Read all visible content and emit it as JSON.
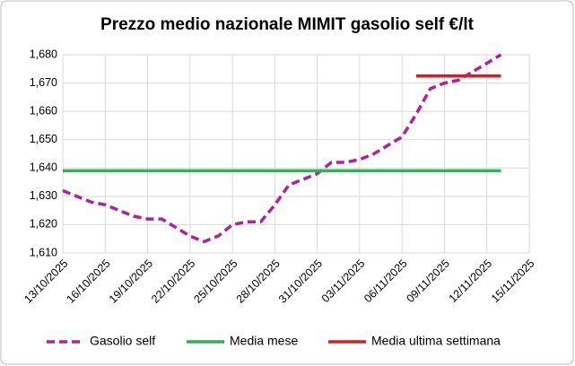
{
  "chart_data": {
    "type": "line",
    "title": "Prezzo medio nazionale MIMIT gasolio self €/lt",
    "xlim": [
      "13/10/2025",
      "15/11/2025"
    ],
    "xticks": [
      "13/10/2025",
      "16/10/2025",
      "19/10/2025",
      "22/10/2025",
      "25/10/2025",
      "28/10/2025",
      "31/10/2025",
      "03/11/2025",
      "06/11/2025",
      "09/11/2025",
      "12/11/2025",
      "15/11/2025"
    ],
    "ylim": [
      1.61,
      1.68
    ],
    "yticks": [
      {
        "value": 1.61,
        "label": "1,610"
      },
      {
        "value": 1.62,
        "label": "1,620"
      },
      {
        "value": 1.63,
        "label": "1,630"
      },
      {
        "value": 1.64,
        "label": "1,640"
      },
      {
        "value": 1.65,
        "label": "1,650"
      },
      {
        "value": 1.66,
        "label": "1,660"
      },
      {
        "value": 1.67,
        "label": "1,670"
      },
      {
        "value": 1.68,
        "label": "1,680"
      }
    ],
    "grid": true,
    "legend": "bottom",
    "series": [
      {
        "name": "Gasolio self",
        "color": "#b0219c",
        "dash": true,
        "x": [
          "13/10/2025",
          "14/10/2025",
          "15/10/2025",
          "16/10/2025",
          "17/10/2025",
          "18/10/2025",
          "19/10/2025",
          "20/10/2025",
          "21/10/2025",
          "22/10/2025",
          "23/10/2025",
          "24/10/2025",
          "25/10/2025",
          "26/10/2025",
          "27/10/2025",
          "28/10/2025",
          "29/10/2025",
          "30/10/2025",
          "31/10/2025",
          "01/11/2025",
          "02/11/2025",
          "03/11/2025",
          "04/11/2025",
          "05/11/2025",
          "06/11/2025",
          "07/11/2025",
          "08/11/2025",
          "09/11/2025",
          "10/11/2025",
          "11/11/2025",
          "12/11/2025",
          "13/11/2025"
        ],
        "values": [
          1.632,
          1.63,
          1.628,
          1.627,
          1.625,
          1.623,
          1.622,
          1.622,
          1.619,
          1.616,
          1.614,
          1.616,
          1.62,
          1.621,
          1.621,
          1.627,
          1.634,
          1.636,
          1.638,
          1.642,
          1.642,
          1.643,
          1.645,
          1.648,
          1.651,
          1.659,
          1.668,
          1.67,
          1.671,
          1.674,
          1.677,
          1.68
        ]
      },
      {
        "name": "Media mese",
        "color": "#2db352",
        "dash": false,
        "x": [
          "13/10/2025",
          "13/11/2025"
        ],
        "values": [
          1.639,
          1.639
        ]
      },
      {
        "name": "Media ultima settimana",
        "color": "#e01b1b",
        "dash": false,
        "x": [
          "07/11/2025",
          "13/11/2025"
        ],
        "values": [
          1.6725,
          1.6725
        ]
      }
    ]
  }
}
